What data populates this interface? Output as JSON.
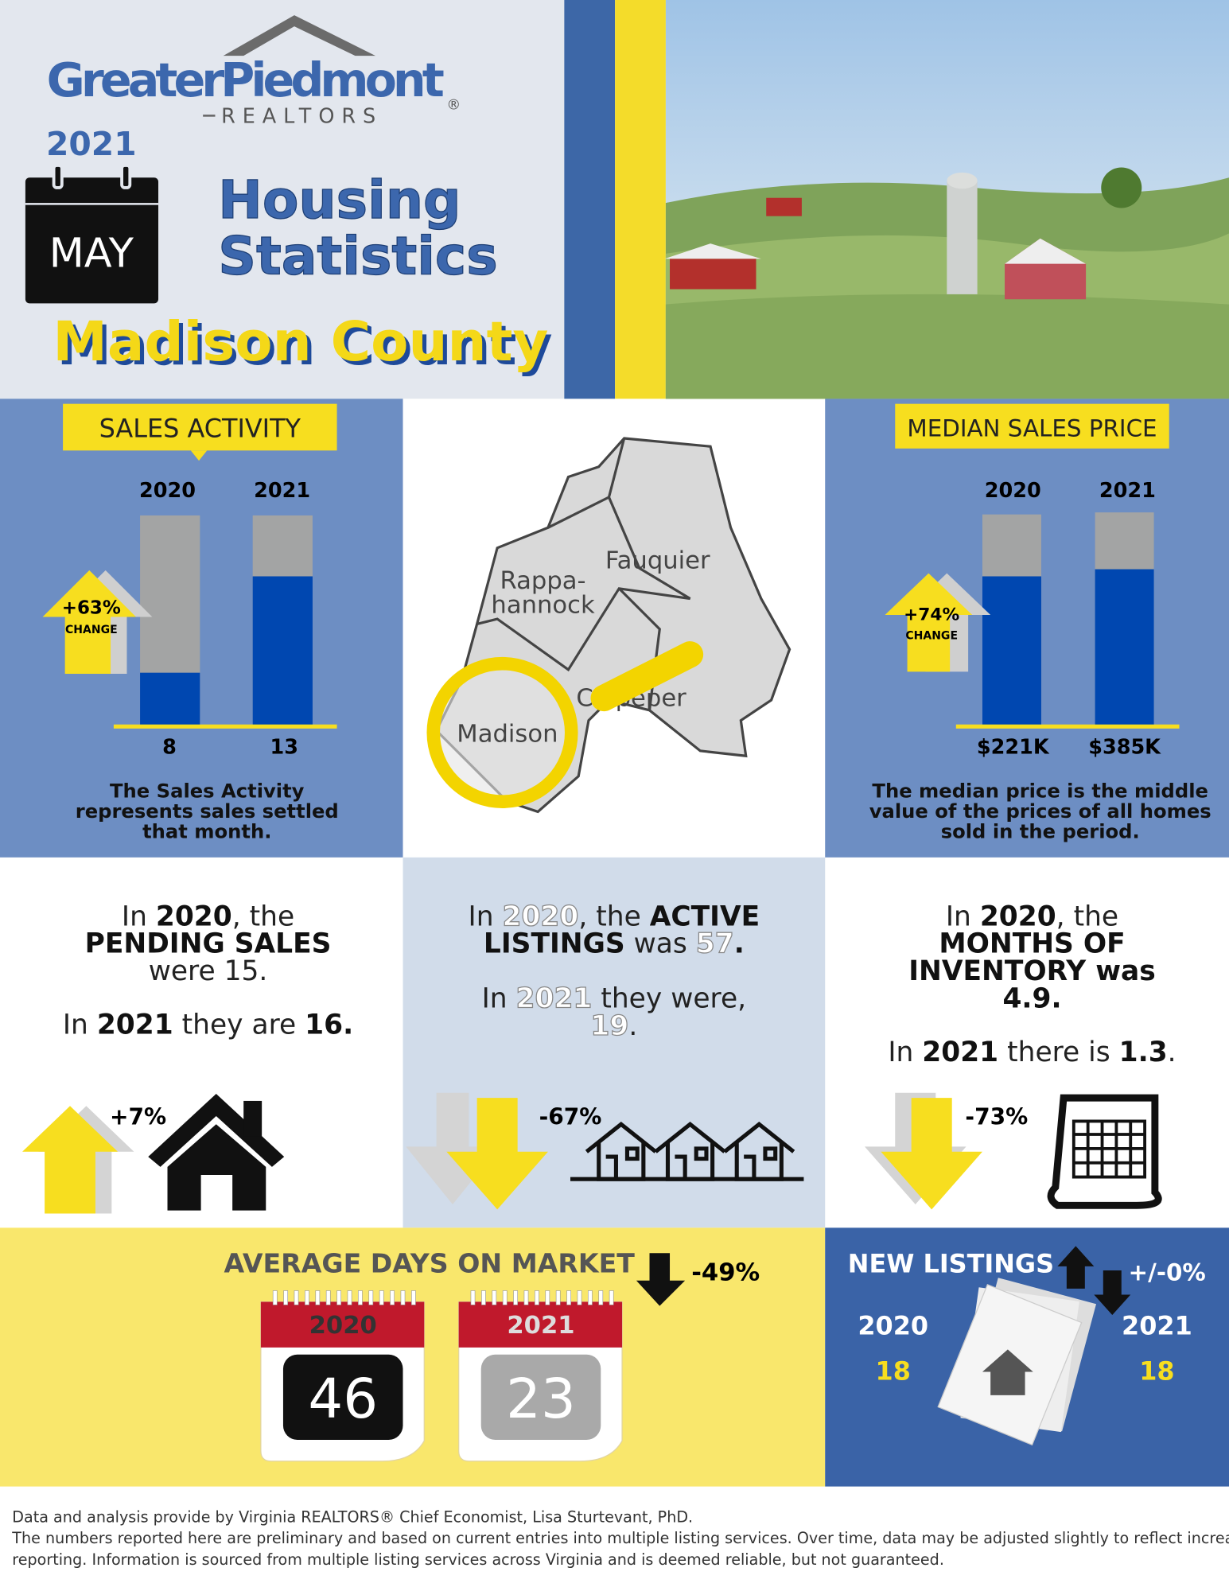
{
  "header": {
    "logo": "GreaterPiedmont",
    "logo_sub": "REALTORS",
    "logo_mark": "®",
    "year": "2021",
    "month": "MAY",
    "title_lines": [
      "Housing",
      "Statistics"
    ],
    "county": "Madison County"
  },
  "sales": {
    "label": "SALES ACTIVITY",
    "years": [
      "2020",
      "2021"
    ],
    "values": [
      "8",
      "13"
    ],
    "change": "+63%",
    "change_label": "CHANGE",
    "note_lines": [
      "The Sales Activity",
      "represents sales settled",
      "that month."
    ]
  },
  "map": {
    "labels": [
      "Fauquier",
      "Rappa-",
      "hannock",
      "Culpeper",
      "Madison"
    ]
  },
  "price": {
    "label": "MEDIAN SALES PRICE",
    "years": [
      "2020",
      "2021"
    ],
    "values": [
      "$221K",
      "$385K"
    ],
    "change": "+74%",
    "change_label": "CHANGE",
    "note_lines": [
      "The median price is the middle",
      "value of the prices of all homes",
      "sold in the period."
    ]
  },
  "pending": {
    "lines": [
      [
        {
          "t": "In "
        },
        {
          "t": "2020",
          "s": "b"
        },
        {
          "t": ", the"
        }
      ],
      [
        {
          "t": "PENDING SALES",
          "s": "b"
        }
      ],
      [
        {
          "t": "were 15."
        }
      ],
      [
        {
          "t": "In "
        },
        {
          "t": "2021",
          "s": "b"
        },
        {
          "t": " they are "
        },
        {
          "t": "16.",
          "s": "b"
        }
      ]
    ],
    "change": "+7%"
  },
  "active": {
    "lines": [
      [
        {
          "t": "In "
        },
        {
          "t": "2020",
          "s": "w"
        },
        {
          "t": ", the "
        },
        {
          "t": "ACTIVE",
          "s": "b"
        }
      ],
      [
        {
          "t": "LISTINGS",
          "s": "b"
        },
        {
          "t": " was "
        },
        {
          "t": "57",
          "s": "w"
        },
        {
          "t": ".",
          "s": "b"
        }
      ],
      [
        {
          "t": "In "
        },
        {
          "t": "2021",
          "s": "w"
        },
        {
          "t": " they were,"
        }
      ],
      [
        {
          "t": "19",
          "s": "w"
        },
        {
          "t": "."
        }
      ]
    ],
    "change": "-67%"
  },
  "inventory": {
    "lines": [
      [
        {
          "t": "In "
        },
        {
          "t": "2020",
          "s": "b"
        },
        {
          "t": ", the"
        }
      ],
      [
        {
          "t": "MONTHS OF",
          "s": "b"
        }
      ],
      [
        {
          "t": "INVENTORY was",
          "s": "b"
        }
      ],
      [
        {
          "t": "4.9.",
          "s": "b"
        }
      ],
      [
        {
          "t": "In "
        },
        {
          "t": "2021",
          "s": "b"
        },
        {
          "t": " there is "
        },
        {
          "t": "1.3",
          "s": "b"
        },
        {
          "t": "."
        }
      ]
    ],
    "change": "-73%"
  },
  "days": {
    "title": "AVERAGE DAYS ON MARKET",
    "change": "-49%",
    "years": [
      "2020",
      "2021"
    ],
    "values": [
      "46",
      "23"
    ]
  },
  "new_listings": {
    "title": "NEW LISTINGS",
    "change": "+/-0%",
    "years": [
      "2020",
      "2021"
    ],
    "values": [
      "18",
      "18"
    ]
  },
  "footer": {
    "lines": [
      "Data and analysis provide by Virginia REALTORS® Chief Economist, Lisa Sturtevant, PhD.",
      "The numbers reported here are preliminary and based on current entries into multiple listing services. Over time, data may be adjusted slightly to reflect increased",
      "reporting. Information is sourced from multiple listing services across Virginia and is deemed reliable, but not guaranteed."
    ]
  }
}
